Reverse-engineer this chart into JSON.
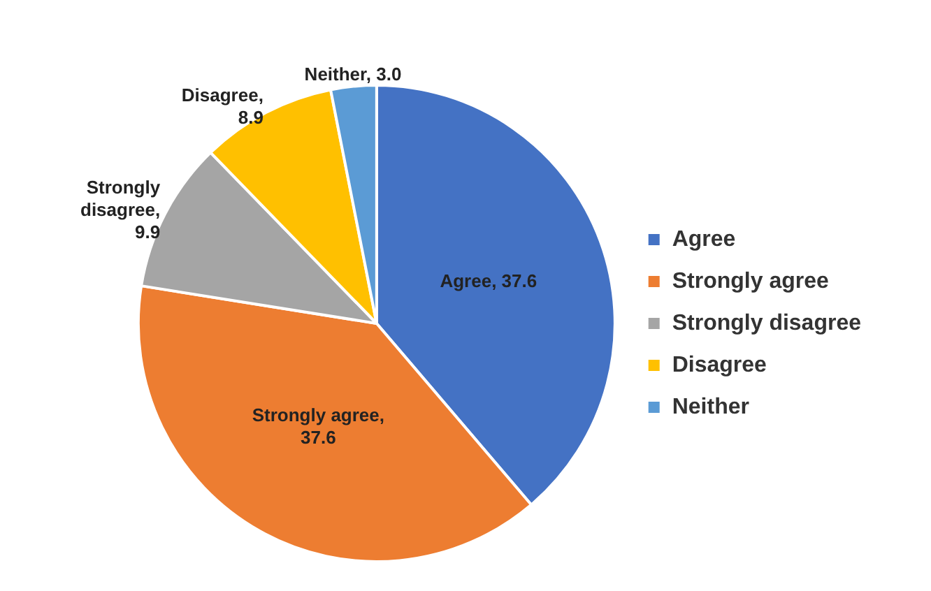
{
  "chart_data": {
    "type": "pie",
    "categories": [
      "Agree",
      "Strongly agree",
      "Strongly disagree",
      "Disagree",
      "Neither"
    ],
    "values": [
      37.6,
      37.6,
      9.9,
      8.9,
      3.0
    ],
    "value_labels": [
      "Agree, 37.6",
      "Strongly agree, 37.6",
      "Strongly disagree, 9.9",
      "Disagree, 8.9",
      "Neither, 3.0"
    ],
    "colors": [
      "#4472c4",
      "#ed7d31",
      "#a5a5a5",
      "#ffc000",
      "#5b9bd5"
    ],
    "legend": "right"
  }
}
